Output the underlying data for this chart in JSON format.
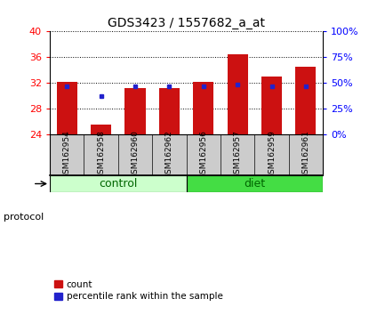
{
  "title": "GDS3423 / 1557682_a_at",
  "samples": [
    "GSM162954",
    "GSM162958",
    "GSM162960",
    "GSM162962",
    "GSM162956",
    "GSM162957",
    "GSM162959",
    "GSM162961"
  ],
  "count_values": [
    32.1,
    25.5,
    31.2,
    31.2,
    32.2,
    36.5,
    33.0,
    34.5
  ],
  "percentile_values": [
    31.4,
    30.0,
    31.5,
    31.5,
    31.5,
    31.7,
    31.5,
    31.5
  ],
  "y_min": 24,
  "y_max": 40,
  "y_ticks": [
    24,
    28,
    32,
    36,
    40
  ],
  "right_y_ticks": [
    0,
    25,
    50,
    75,
    100
  ],
  "bar_color": "#CC1111",
  "point_color": "#2222CC",
  "bar_width": 0.6,
  "control_color": "#CCFFCC",
  "diet_color": "#44DD44",
  "label_bg": "#CCCCCC",
  "legend_items": [
    "count",
    "percentile rank within the sample"
  ],
  "n_control": 4,
  "n_diet": 4
}
